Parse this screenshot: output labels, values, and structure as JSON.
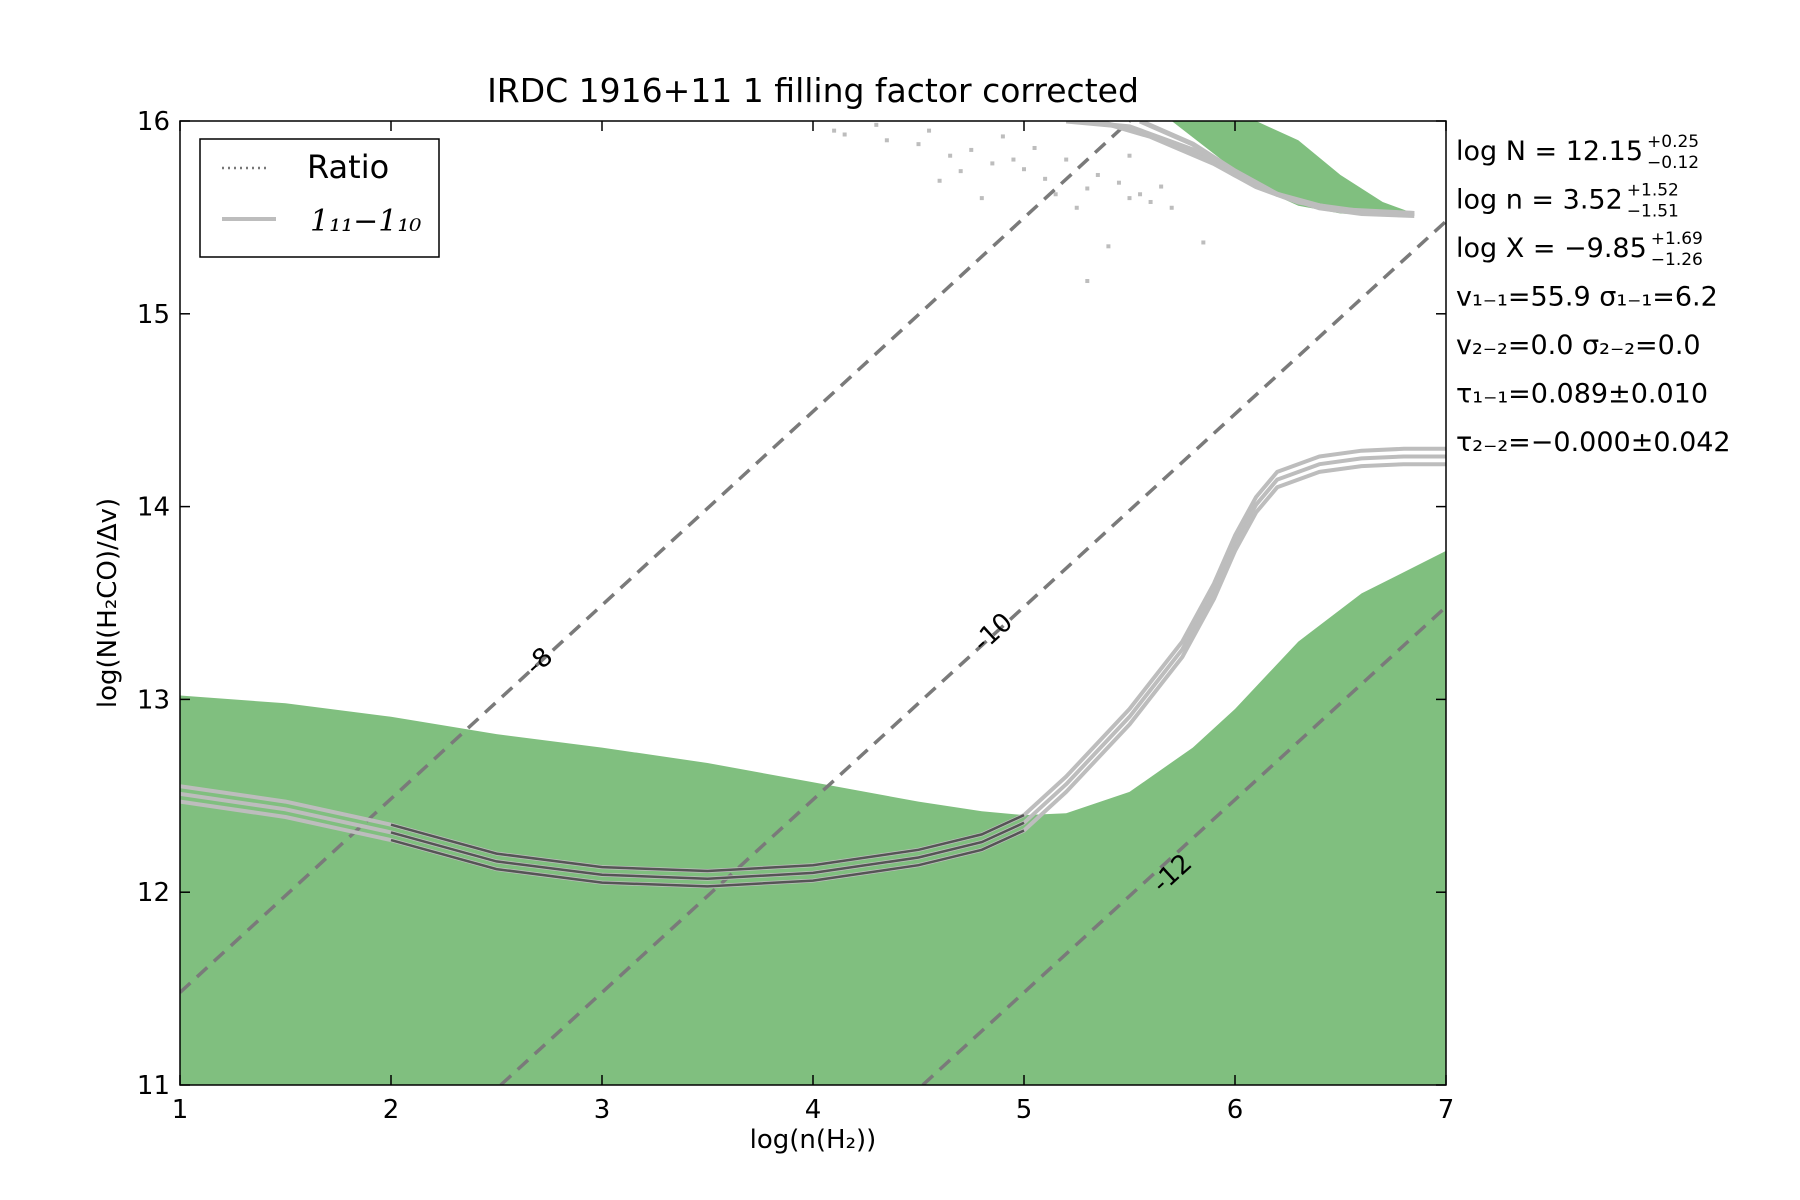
{
  "chart_data": {
    "type": "line",
    "title": "IRDC 1916+11 1 filling factor corrected",
    "xlabel": "log(n(H₂))",
    "ylabel": "log(N(H₂CO)/Δv)",
    "xlim": [
      1,
      7
    ],
    "ylim": [
      11,
      16
    ],
    "xticks": [
      "1",
      "2",
      "3",
      "4",
      "5",
      "6",
      "7"
    ],
    "yticks": [
      "11",
      "12",
      "13",
      "14",
      "15",
      "16"
    ],
    "grid": false,
    "legend": {
      "position": "top-left",
      "entries": [
        {
          "label": "Ratio",
          "style": "dotted"
        },
        {
          "label": "1₁₁−1₁₀",
          "style": "solid"
        }
      ]
    },
    "colors": {
      "fill": "#80bf7f",
      "contour": "#bdbdbd",
      "dashed": "#7a7a7a",
      "dark": "#555555"
    },
    "fill_region_upper": {
      "x": [
        1.0,
        1.5,
        2.0,
        2.5,
        3.0,
        3.5,
        4.0,
        4.5,
        4.8,
        5.0,
        5.2,
        5.5,
        5.8,
        6.0,
        6.3,
        6.6,
        7.0
      ],
      "y": [
        13.02,
        12.98,
        12.91,
        12.82,
        12.75,
        12.67,
        12.57,
        12.47,
        12.42,
        12.4,
        12.41,
        12.52,
        12.75,
        12.95,
        13.3,
        13.55,
        13.77
      ]
    },
    "fill_region_top": {
      "x": [
        5.7,
        5.9,
        6.1,
        6.3,
        6.5,
        6.7,
        6.85
      ],
      "y_upper": [
        16.0,
        16.0,
        16.0,
        15.9,
        15.72,
        15.58,
        15.52
      ],
      "y_lower": [
        16.0,
        15.83,
        15.66,
        15.56,
        15.52,
        15.51,
        15.51
      ]
    },
    "series": [
      {
        "x": [
          1.0,
          1.5,
          2.0,
          2.5,
          3.0,
          3.5,
          4.0,
          4.5,
          4.8,
          5.0,
          5.2,
          5.5,
          5.75,
          5.9,
          6.0,
          6.1,
          6.2,
          6.4,
          6.6,
          6.8,
          7.0
        ],
        "y": [
          12.55,
          12.47,
          12.35,
          12.2,
          12.13,
          12.11,
          12.14,
          12.22,
          12.3,
          12.4,
          12.6,
          12.95,
          13.3,
          13.6,
          13.85,
          14.05,
          14.18,
          14.26,
          14.29,
          14.3,
          14.3
        ]
      },
      {
        "x": [
          1.0,
          1.5,
          2.0,
          2.5,
          3.0,
          3.5,
          4.0,
          4.5,
          4.8,
          5.0,
          5.2,
          5.5,
          5.75,
          5.9,
          6.0,
          6.1,
          6.2,
          6.4,
          6.6,
          6.8,
          7.0
        ],
        "y": [
          12.51,
          12.43,
          12.31,
          12.16,
          12.09,
          12.07,
          12.1,
          12.18,
          12.26,
          12.36,
          12.56,
          12.91,
          13.26,
          13.56,
          13.81,
          14.01,
          14.14,
          14.22,
          14.25,
          14.26,
          14.26
        ]
      },
      {
        "x": [
          1.0,
          1.5,
          2.0,
          2.5,
          3.0,
          3.5,
          4.0,
          4.5,
          4.8,
          5.0,
          5.2,
          5.5,
          5.75,
          5.9,
          6.0,
          6.1,
          6.2,
          6.4,
          6.6,
          6.8,
          7.0
        ],
        "y": [
          12.47,
          12.39,
          12.27,
          12.12,
          12.05,
          12.03,
          12.06,
          12.14,
          12.22,
          12.32,
          12.52,
          12.87,
          13.22,
          13.52,
          13.77,
          13.97,
          14.1,
          14.18,
          14.21,
          14.22,
          14.22
        ]
      }
    ],
    "top_contours": [
      {
        "x": [
          5.2,
          5.5,
          5.8,
          6.0,
          6.2,
          6.4,
          6.6,
          6.85
        ],
        "y": [
          16.0,
          15.97,
          15.85,
          15.72,
          15.62,
          15.56,
          15.53,
          15.52
        ]
      },
      {
        "x": [
          5.35,
          5.6,
          5.9,
          6.1,
          6.3,
          6.5,
          6.85
        ],
        "y": [
          16.0,
          15.92,
          15.78,
          15.66,
          15.58,
          15.54,
          15.52
        ]
      },
      {
        "x": [
          5.55,
          5.8,
          6.0,
          6.2,
          6.4,
          6.6,
          6.85
        ],
        "y": [
          16.0,
          15.88,
          15.74,
          15.62,
          15.55,
          15.52,
          15.51
        ]
      }
    ],
    "scatter_points": {
      "x": [
        4.1,
        4.15,
        4.3,
        4.35,
        4.5,
        4.55,
        4.65,
        4.75,
        4.85,
        4.9,
        5.0,
        5.05,
        5.1,
        5.2,
        5.3,
        5.35,
        5.45,
        5.5,
        5.55,
        5.6,
        5.65,
        5.7,
        5.4,
        5.3,
        5.5,
        5.85,
        5.25,
        5.15,
        4.95,
        4.7,
        4.6,
        4.8
      ],
      "y": [
        15.95,
        15.93,
        15.98,
        15.9,
        15.88,
        15.95,
        15.82,
        15.85,
        15.78,
        15.92,
        15.75,
        15.86,
        15.7,
        15.8,
        15.65,
        15.72,
        15.68,
        15.6,
        15.62,
        15.58,
        15.66,
        15.55,
        15.35,
        15.17,
        15.82,
        15.37,
        15.55,
        15.62,
        15.8,
        15.74,
        15.69,
        15.6
      ]
    },
    "dashed_lines": [
      {
        "label": "-8",
        "x": [
          1.0,
          5.5
        ],
        "y": [
          11.48,
          16.0
        ]
      },
      {
        "label": "-10",
        "x": [
          2.52,
          7.0
        ],
        "y": [
          11.0,
          15.48
        ]
      },
      {
        "label": "-12",
        "x": [
          4.52,
          7.0
        ],
        "y": [
          11.0,
          13.48
        ]
      }
    ],
    "annotations": [
      {
        "text": "log N = 12.15",
        "sup": "+0.25",
        "sub": "−0.12"
      },
      {
        "text": "log n = 3.52",
        "sup": "+1.52",
        "sub": "−1.51"
      },
      {
        "text": "log X = −9.85",
        "sup": "+1.69",
        "sub": "−1.26"
      },
      {
        "text": "v₁₋₁=55.9   σ₁₋₁=6.2"
      },
      {
        "text": "v₂₋₂=0.0   σ₂₋₂=0.0"
      },
      {
        "text": "τ₁₋₁=0.089±0.010"
      },
      {
        "text": "τ₂₋₂=−0.000±0.042"
      }
    ]
  }
}
